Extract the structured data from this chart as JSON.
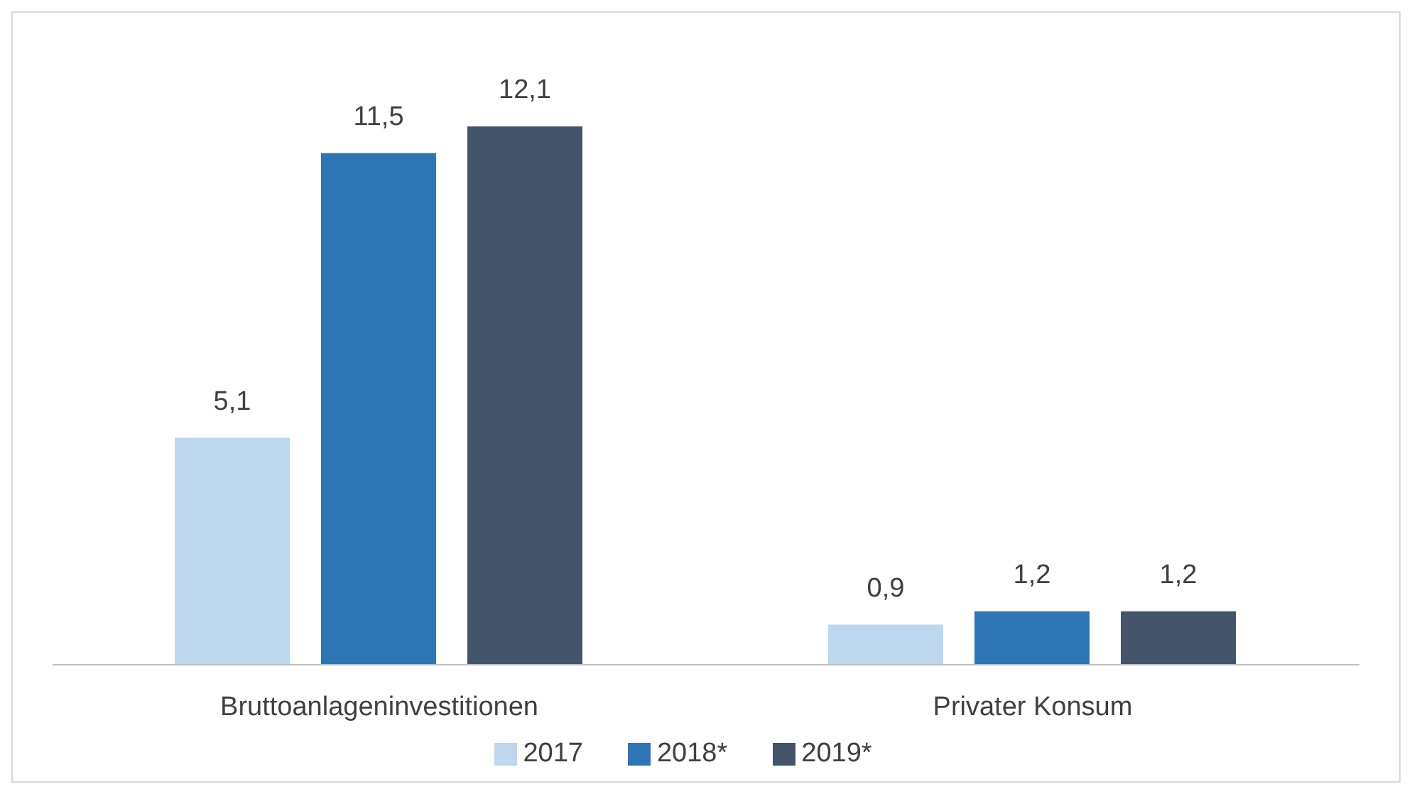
{
  "chart_data": {
    "type": "bar",
    "categories": [
      "Bruttoanlageninvestitionen",
      "Privater Konsum"
    ],
    "series": [
      {
        "name": "2017",
        "color": "#bdd7ee",
        "values": [
          5.1,
          0.9
        ],
        "value_labels": [
          "5,1",
          "0,9"
        ]
      },
      {
        "name": "2018*",
        "color": "#2e75b6",
        "values": [
          11.5,
          1.2
        ],
        "value_labels": [
          "11,5",
          "1,2"
        ]
      },
      {
        "name": "2019*",
        "color": "#44546a",
        "values": [
          12.1,
          1.2
        ],
        "value_labels": [
          "12,1",
          "1,2"
        ]
      }
    ],
    "legend": "bottom",
    "tick_labels": "x"
  }
}
